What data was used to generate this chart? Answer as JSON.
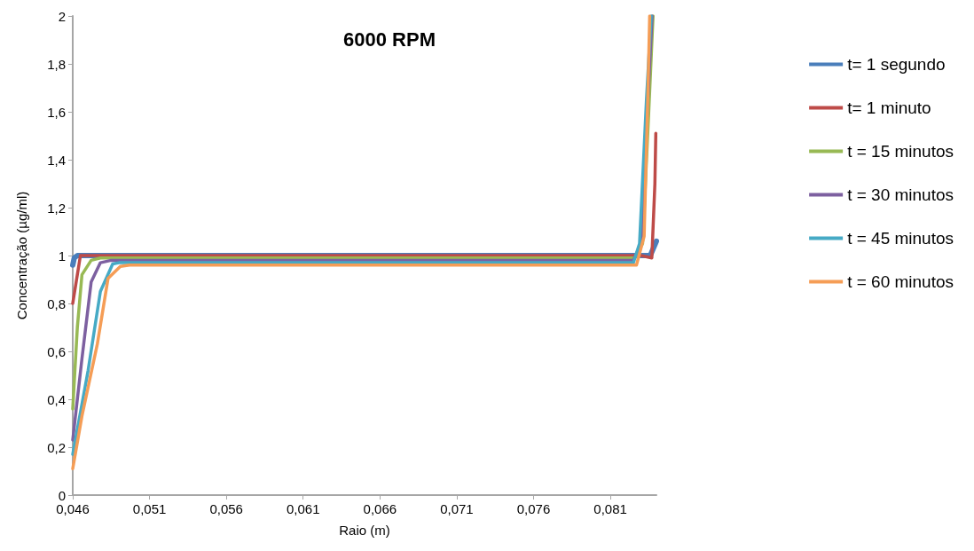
{
  "chart_data": {
    "type": "line",
    "title": "6000 RPM",
    "xlabel": "Raio (m)",
    "ylabel": "Concentração (µg/ml)",
    "xlim": [
      0.046,
      0.084
    ],
    "ylim": [
      0,
      2
    ],
    "xticks": [
      {
        "value": 0.046,
        "label": "0,046"
      },
      {
        "value": 0.051,
        "label": "0,051"
      },
      {
        "value": 0.056,
        "label": "0,056"
      },
      {
        "value": 0.061,
        "label": "0,061"
      },
      {
        "value": 0.066,
        "label": "0,066"
      },
      {
        "value": 0.071,
        "label": "0,071"
      },
      {
        "value": 0.076,
        "label": "0,076"
      },
      {
        "value": 0.081,
        "label": "0,081"
      }
    ],
    "yticks": [
      0,
      {
        "value": 0.2,
        "label": "0,2"
      },
      {
        "value": 0.4,
        "label": "0,4"
      },
      {
        "value": 0.6,
        "label": "0,6"
      },
      {
        "value": 0.8,
        "label": "0,8"
      },
      1,
      {
        "value": 1.2,
        "label": "1,2"
      },
      {
        "value": 1.4,
        "label": "1,4"
      },
      {
        "value": 1.6,
        "label": "1,6"
      },
      {
        "value": 1.8,
        "label": "1,8"
      },
      2
    ],
    "grid": false,
    "legend": "right",
    "marker": "none",
    "line_style": "solid",
    "series": [
      {
        "name": "t= 1 segundo",
        "color": "#4a7ebb",
        "x": [
          0.046,
          0.0461,
          0.0463,
          0.083,
          0.0836,
          0.084
        ],
        "values": [
          0.96,
          0.99,
          1.0,
          1.0,
          1.0,
          1.06
        ]
      },
      {
        "name": "t= 1 minuto",
        "color": "#be4b48",
        "x": [
          0.046,
          0.0465,
          0.0467,
          0.083,
          0.0837,
          0.0839,
          0.08396
        ],
        "values": [
          0.8,
          1.0,
          1.0,
          1.0,
          0.99,
          1.3,
          1.51
        ]
      },
      {
        "name": "t = 15 minutos",
        "color": "#98b954",
        "x": [
          0.046,
          0.0463,
          0.0466,
          0.0472,
          0.0478,
          0.0826,
          0.0831,
          0.0835,
          0.08378
        ],
        "values": [
          0.36,
          0.7,
          0.92,
          0.98,
          0.99,
          0.99,
          1.05,
          1.6,
          2.0
        ]
      },
      {
        "name": "t = 30 minutos",
        "color": "#7d60a0",
        "x": [
          0.046,
          0.0466,
          0.0472,
          0.0478,
          0.0485,
          0.0825,
          0.083,
          0.0834,
          0.08372
        ],
        "values": [
          0.23,
          0.57,
          0.89,
          0.97,
          0.98,
          0.98,
          1.05,
          1.6,
          2.0
        ]
      },
      {
        "name": "t = 45 minutos",
        "color": "#46aac5",
        "x": [
          0.046,
          0.047,
          0.0478,
          0.0486,
          0.049,
          0.0825,
          0.0829,
          0.08335,
          0.08366
        ],
        "values": [
          0.17,
          0.52,
          0.85,
          0.965,
          0.97,
          0.97,
          1.05,
          1.65,
          2.0
        ]
      },
      {
        "name": "t = 60 minutos",
        "color": "#f59d56",
        "x": [
          0.046,
          0.0466,
          0.0476,
          0.0483,
          0.0491,
          0.0497,
          0.0827,
          0.0832,
          0.08345,
          0.08356
        ],
        "values": [
          0.11,
          0.33,
          0.63,
          0.905,
          0.955,
          0.96,
          0.96,
          1.08,
          1.69,
          2.0
        ]
      }
    ]
  }
}
